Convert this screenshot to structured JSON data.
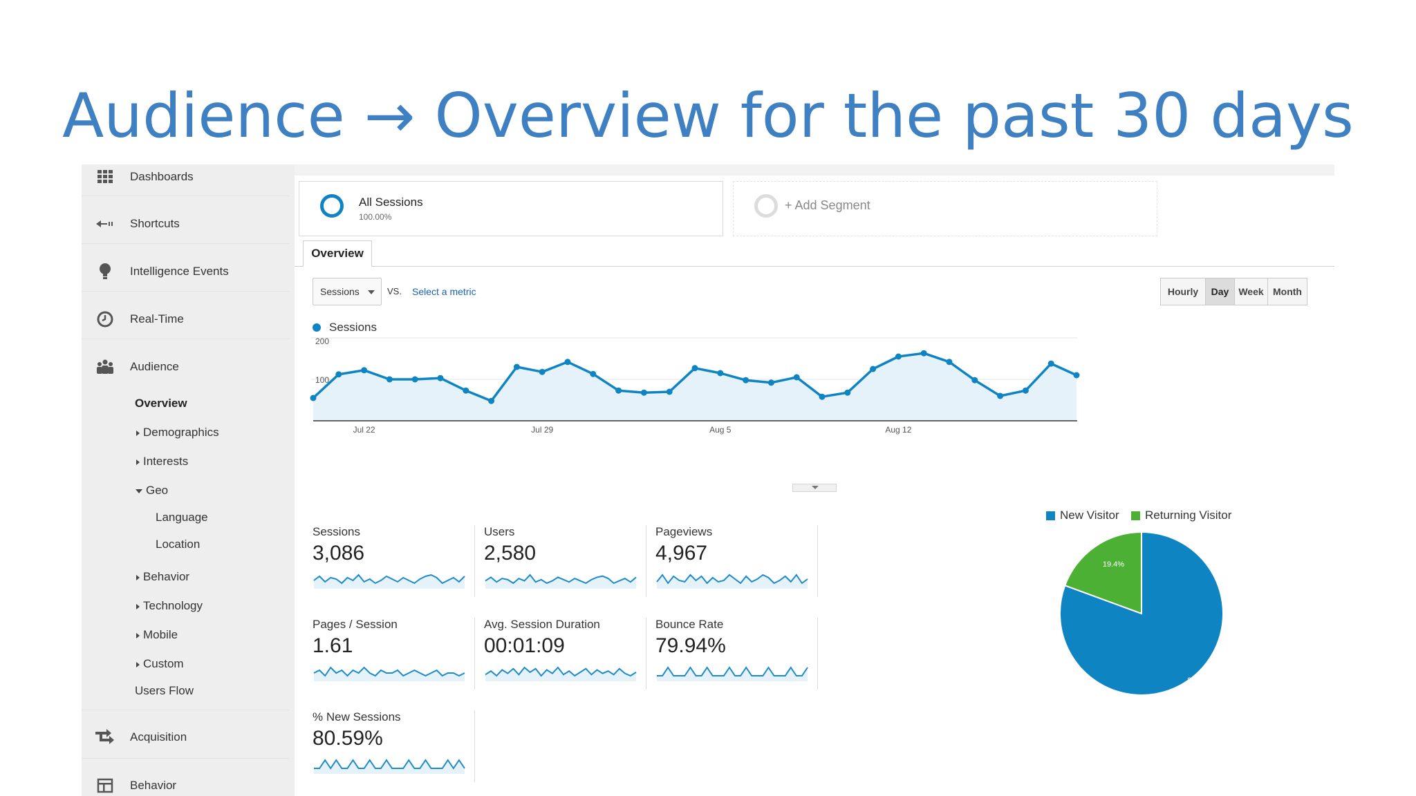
{
  "slide_title": "Audience → Overview for the past 30 days",
  "sidebar": {
    "items": [
      {
        "label": "Dashboards",
        "icon": "grid-icon"
      },
      {
        "label": "Shortcuts",
        "icon": "shortcut-arrow-icon"
      },
      {
        "label": "Intelligence Events",
        "icon": "lightbulb-icon"
      },
      {
        "label": "Real-Time",
        "icon": "clock-icon"
      },
      {
        "label": "Audience",
        "icon": "people-icon"
      },
      {
        "label": "Acquisition",
        "icon": "acquisition-arrows-icon"
      },
      {
        "label": "Behavior",
        "icon": "layout-icon"
      }
    ],
    "audience_sub": {
      "overview": "Overview",
      "demographics": "Demographics",
      "interests": "Interests",
      "geo": "Geo",
      "language": "Language",
      "location": "Location",
      "behavior": "Behavior",
      "technology": "Technology",
      "mobile": "Mobile",
      "custom": "Custom",
      "users_flow": "Users Flow"
    }
  },
  "segments": {
    "active": {
      "name": "All Sessions",
      "pct": "100.00%"
    },
    "add_label": "+ Add Segment"
  },
  "tab": "Overview",
  "controls": {
    "metric": "Sessions",
    "vs": "VS.",
    "select_metric": "Select a metric",
    "granularity": [
      "Hourly",
      "Day",
      "Week",
      "Month"
    ],
    "granularity_selected": "Day"
  },
  "chart_data": {
    "type": "area",
    "series_name": "Sessions",
    "ylim": [
      0,
      200
    ],
    "y_ticks": [
      "200",
      "100"
    ],
    "x_ticks": [
      "Jul 22",
      "Jul 29",
      "Aug 5",
      "Aug 12"
    ],
    "x_tick_index": [
      2,
      9,
      16,
      23
    ],
    "values": [
      55,
      112,
      122,
      100,
      100,
      103,
      73,
      48,
      130,
      118,
      142,
      113,
      73,
      68,
      70,
      127,
      115,
      98,
      92,
      105,
      58,
      68,
      125,
      155,
      163,
      142,
      98,
      60,
      73,
      138,
      110
    ],
    "color": "#0e84c2",
    "fill": "#e6f2fa"
  },
  "stats": [
    {
      "label": "Sessions",
      "value": "3,086",
      "spark": [
        5,
        8,
        4,
        7,
        6,
        3,
        7,
        5,
        9,
        4,
        6,
        3,
        5,
        8,
        6,
        4,
        7,
        5,
        3,
        6,
        8,
        9,
        7,
        3,
        5,
        7,
        4,
        8
      ]
    },
    {
      "label": "Users",
      "value": "2,580",
      "spark": [
        5,
        8,
        4,
        7,
        6,
        3,
        7,
        5,
        10,
        4,
        6,
        3,
        5,
        8,
        6,
        4,
        7,
        5,
        3,
        6,
        8,
        9,
        7,
        3,
        5,
        7,
        4,
        8
      ]
    },
    {
      "label": "Pageviews",
      "value": "4,967",
      "spark": [
        4,
        9,
        3,
        8,
        5,
        4,
        9,
        5,
        8,
        3,
        7,
        4,
        5,
        9,
        6,
        3,
        8,
        4,
        6,
        9,
        7,
        3,
        5,
        8,
        4,
        9,
        3,
        6
      ]
    },
    {
      "label": "Pages / Session",
      "value": "1.61",
      "spark": [
        5,
        6,
        4,
        7,
        5,
        6,
        4,
        6,
        5,
        7,
        5,
        4,
        6,
        5,
        5,
        6,
        4,
        5,
        6,
        5,
        4,
        5,
        6,
        4,
        5,
        5,
        4,
        5
      ]
    },
    {
      "label": "Avg. Session Duration",
      "value": "00:01:09",
      "spark": [
        3,
        6,
        2,
        7,
        4,
        8,
        3,
        9,
        5,
        8,
        2,
        7,
        4,
        9,
        3,
        6,
        2,
        5,
        8,
        3,
        7,
        4,
        6,
        3,
        8,
        4,
        2,
        5
      ]
    },
    {
      "label": "Bounce Rate",
      "value": "79.94%",
      "spark": [
        5,
        5,
        6,
        5,
        5,
        5,
        6,
        5,
        5,
        6,
        5,
        5,
        5,
        6,
        5,
        5,
        6,
        5,
        5,
        5,
        6,
        5,
        5,
        5,
        6,
        5,
        5,
        6
      ]
    },
    {
      "label": "% New Sessions",
      "value": "80.59%",
      "spark": [
        5,
        5,
        6,
        5,
        6,
        5,
        5,
        6,
        5,
        5,
        6,
        5,
        5,
        6,
        5,
        5,
        5,
        6,
        5,
        5,
        6,
        5,
        5,
        5,
        6,
        5,
        6,
        5
      ]
    }
  ],
  "pie": {
    "legend": [
      {
        "label": "New Visitor",
        "color": "#0e84c2"
      },
      {
        "label": "Returning Visitor",
        "color": "#4cb034"
      }
    ],
    "slices": [
      {
        "label": "New Visitor",
        "value": 80.6,
        "text": "80.6%",
        "color": "#0e84c2"
      },
      {
        "label": "Returning Visitor",
        "value": 19.4,
        "text": "19.4%",
        "color": "#4cb034"
      }
    ]
  }
}
